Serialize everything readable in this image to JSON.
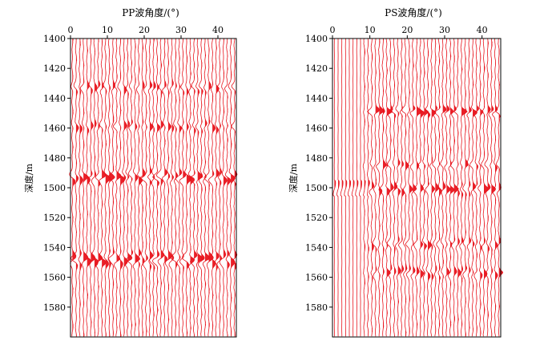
{
  "chart_data": [
    {
      "type": "seismic-gather",
      "title": "PP波角度/(°)",
      "ylabel": "深度/m",
      "x_ticks": [
        0,
        10,
        20,
        30,
        40
      ],
      "xlim": [
        0,
        45
      ],
      "y_ticks": [
        1400,
        1420,
        1440,
        1460,
        1480,
        1500,
        1520,
        1540,
        1560,
        1580
      ],
      "ylim": [
        1400,
        1600
      ],
      "trace_color": "#e8141c",
      "n_traces": 45,
      "strong_events": [
        {
          "depth": 1433,
          "strength": 0.55,
          "width": 5
        },
        {
          "depth": 1459,
          "strength": 0.55,
          "width": 5
        },
        {
          "depth": 1493,
          "strength": 1.0,
          "width": 6
        },
        {
          "depth": 1548,
          "strength": 0.95,
          "width": 7
        }
      ]
    },
    {
      "type": "seismic-gather",
      "title": "PS波角度/(°)",
      "ylabel": "深度/m",
      "x_ticks": [
        0,
        10,
        20,
        30,
        40
      ],
      "xlim": [
        0,
        45
      ],
      "y_ticks": [
        1400,
        1420,
        1440,
        1460,
        1480,
        1500,
        1520,
        1540,
        1560,
        1580
      ],
      "ylim": [
        1400,
        1600
      ],
      "trace_color": "#e8141c",
      "n_traces": 45,
      "strong_events": [
        {
          "depth": 1449,
          "strength": 1.0,
          "width": 4
        },
        {
          "depth": 1485,
          "strength": 0.6,
          "width": 4
        },
        {
          "depth": 1501,
          "strength": 0.75,
          "width": 5
        },
        {
          "depth": 1538,
          "strength": 0.6,
          "width": 5
        },
        {
          "depth": 1557,
          "strength": 0.65,
          "width": 5
        }
      ]
    }
  ]
}
